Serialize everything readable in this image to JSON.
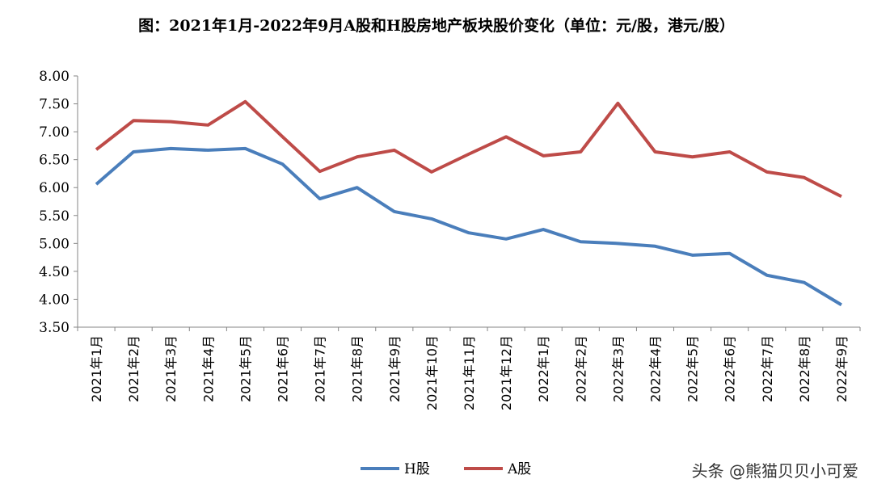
{
  "chart_data": {
    "type": "line",
    "title": "图：2021年1月-2022年9月A股和H股房地产板块股价变化（单位：元/股，港元/股）",
    "categories": [
      "2021年1月",
      "2021年2月",
      "2021年3月",
      "2021年4月",
      "2021年5月",
      "2021年6月",
      "2021年7月",
      "2021年8月",
      "2021年9月",
      "2021年10月",
      "2021年11月",
      "2021年12月",
      "2022年1月",
      "2022年2月",
      "2022年3月",
      "2022年4月",
      "2022年5月",
      "2022年6月",
      "2022年7月",
      "2022年8月",
      "2022年9月"
    ],
    "series": [
      {
        "name": "H股",
        "color": "#4a7ebb",
        "values": [
          6.06,
          6.64,
          6.7,
          6.67,
          6.7,
          6.42,
          5.8,
          6.0,
          5.57,
          5.44,
          5.19,
          5.08,
          5.25,
          5.03,
          5.0,
          4.95,
          4.79,
          4.82,
          4.43,
          4.3,
          3.9
        ]
      },
      {
        "name": "A股",
        "color": "#be4b48",
        "values": [
          6.68,
          7.2,
          7.18,
          7.12,
          7.54,
          6.91,
          6.29,
          6.55,
          6.67,
          6.28,
          6.6,
          6.91,
          6.57,
          6.64,
          7.51,
          6.64,
          6.55,
          6.64,
          6.28,
          6.18,
          5.84
        ]
      }
    ],
    "ylim": [
      3.5,
      8.0
    ],
    "yticks": [
      "3.50",
      "4.00",
      "4.50",
      "5.00",
      "5.50",
      "6.00",
      "6.50",
      "7.00",
      "7.50",
      "8.00"
    ],
    "xlabel": "",
    "ylabel": "",
    "grid": false,
    "legend_position": "bottom"
  },
  "watermark": "头条 @熊猫贝贝小可爱"
}
